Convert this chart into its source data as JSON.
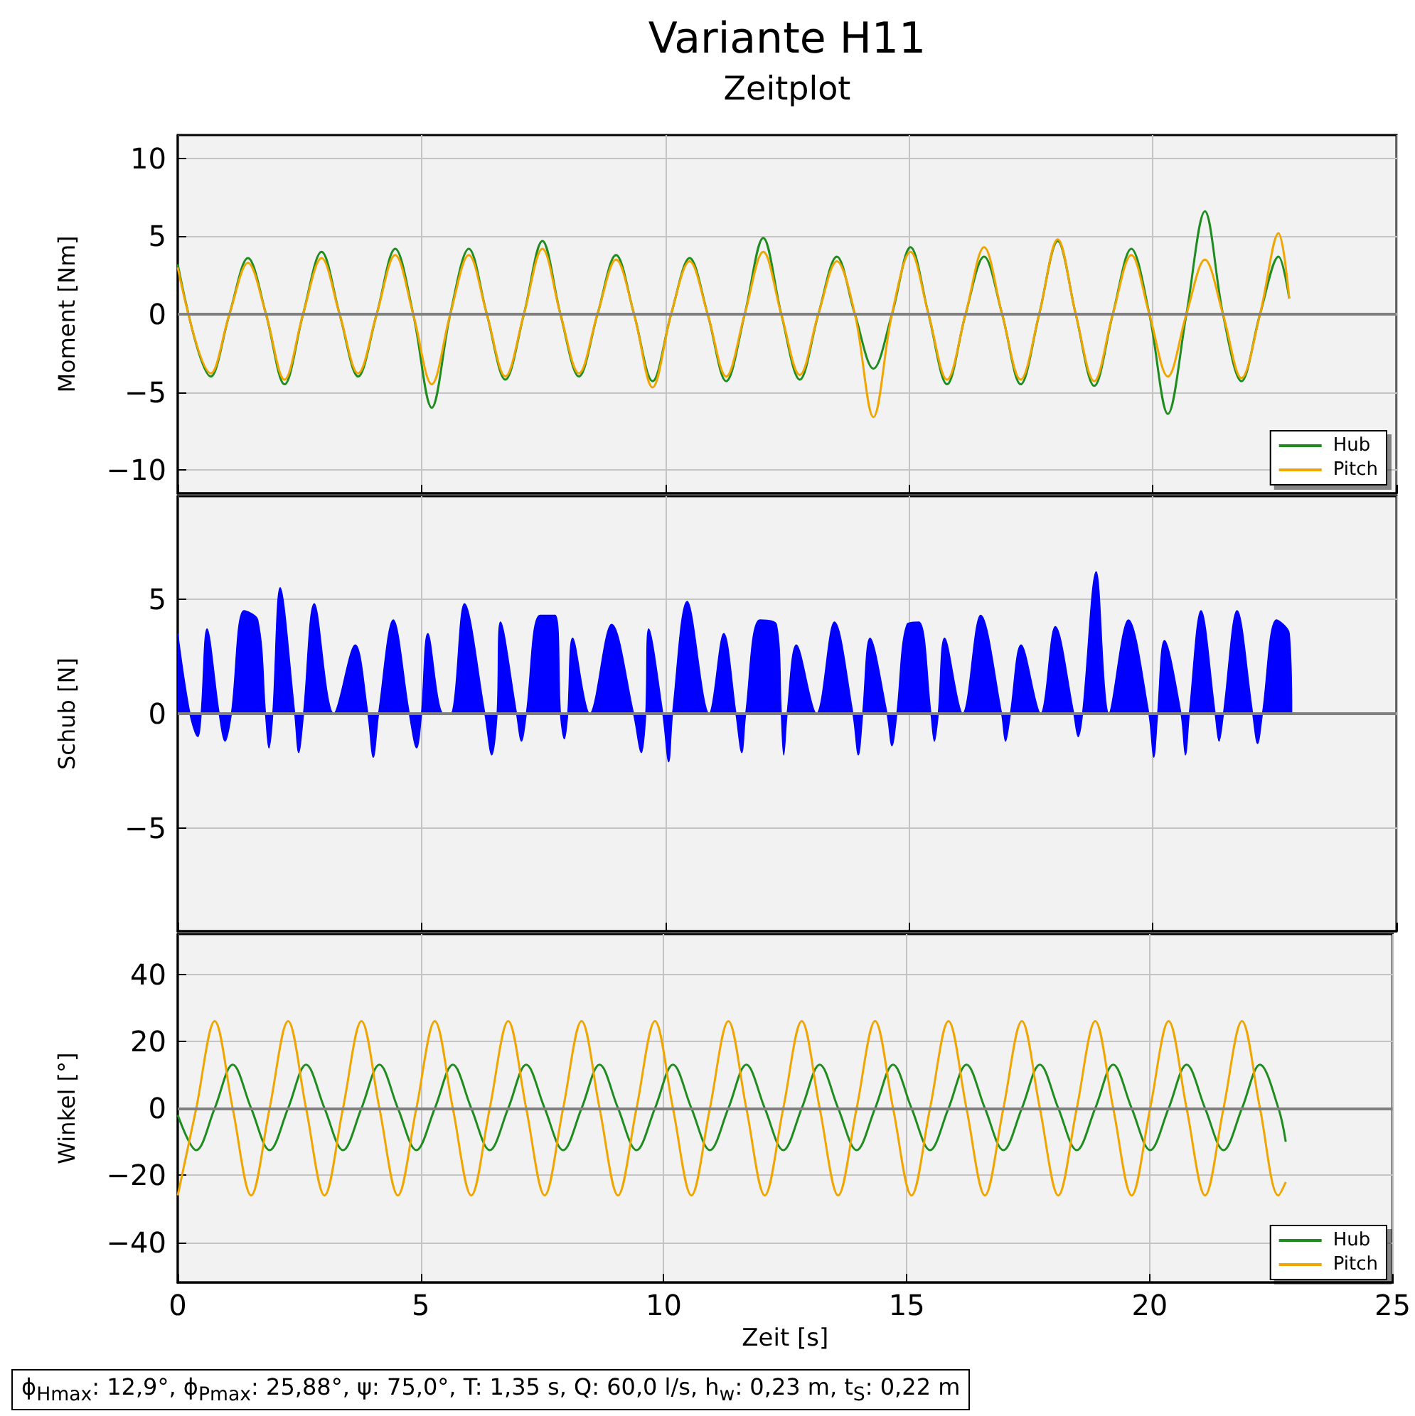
{
  "chart_data": [
    {
      "type": "line",
      "title": "Variante H11",
      "subtitle": "Zeitplot",
      "ylabel": "Moment [Nm]",
      "x": [
        0,
        0.68,
        1.06,
        1.44,
        1.81,
        2.19,
        2.57,
        2.95,
        3.32,
        3.7,
        4.08,
        4.46,
        4.83,
        5.21,
        5.59,
        5.97,
        6.34,
        6.72,
        7.1,
        7.48,
        7.85,
        8.23,
        8.61,
        8.99,
        9.36,
        9.74,
        10.12,
        10.5,
        10.87,
        11.25,
        11.63,
        12.01,
        12.38,
        12.76,
        13.14,
        13.52,
        13.89,
        14.27,
        14.65,
        15.03,
        15.4,
        15.78,
        16.16,
        16.54,
        16.91,
        17.29,
        17.67,
        18.05,
        18.42,
        18.8,
        19.18,
        19.56,
        19.93,
        20.31,
        20.69,
        21.07,
        21.44,
        21.82,
        22.2,
        22.58,
        22.8
      ],
      "series": [
        {
          "name": "Hub",
          "color": "#1e8c1e",
          "values": [
            3.2,
            -4.0,
            0,
            3.6,
            0,
            -4.5,
            0,
            4.0,
            0,
            -4.0,
            0,
            4.2,
            0,
            -6.0,
            0,
            4.2,
            0,
            -4.2,
            0,
            4.7,
            0,
            -4.0,
            0,
            3.8,
            0,
            -4.3,
            0,
            3.6,
            0,
            -4.3,
            0,
            4.9,
            0,
            -4.2,
            0,
            3.7,
            0,
            -3.5,
            0,
            4.3,
            0,
            -4.5,
            0,
            3.7,
            0,
            -4.5,
            0,
            4.7,
            0,
            -4.6,
            0,
            4.2,
            0,
            -6.4,
            0,
            6.6,
            0,
            -4.3,
            0,
            3.7,
            1.0
          ]
        },
        {
          "name": "Pitch",
          "color": "#f0a500",
          "values": [
            3.0,
            -3.8,
            0,
            3.3,
            0,
            -4.2,
            0,
            3.6,
            0,
            -3.8,
            0,
            3.8,
            0,
            -4.5,
            0,
            3.8,
            0,
            -4.0,
            0,
            4.2,
            0,
            -3.8,
            0,
            3.5,
            0,
            -4.7,
            0,
            3.4,
            0,
            -4.0,
            0,
            4.0,
            0,
            -3.9,
            0,
            3.4,
            0,
            -6.6,
            0,
            4.0,
            0,
            -4.2,
            0,
            4.3,
            0,
            -4.2,
            0,
            4.8,
            0,
            -4.3,
            0,
            3.8,
            0,
            -4.0,
            0,
            3.5,
            0,
            -4.1,
            0,
            5.2,
            1.0
          ]
        }
      ],
      "xlim": [
        0,
        25
      ],
      "xticks": [
        0,
        5,
        10,
        15,
        20,
        25
      ],
      "ylim": [
        -11.5,
        11.5
      ],
      "yticks": [
        -10,
        -5,
        0,
        5,
        10
      ],
      "ref_lines": [
        {
          "axis": "y",
          "value": 0,
          "color": "#808080"
        }
      ],
      "grid": true,
      "legend": "bottom right",
      "tick_labels": "y"
    },
    {
      "type": "area",
      "ylabel": "Schub [N]",
      "x": [
        0,
        0.25,
        0.41,
        0.48,
        0.6,
        0.85,
        0.97,
        1.1,
        1.36,
        1.64,
        1.8,
        1.87,
        1.95,
        2.1,
        2.4,
        2.48,
        2.58,
        2.8,
        3.2,
        3.64,
        3.9,
        4.01,
        4.12,
        4.42,
        4.75,
        4.9,
        5.0,
        5.13,
        5.45,
        5.6,
        5.88,
        6.3,
        6.44,
        6.55,
        6.62,
        6.95,
        7.05,
        7.15,
        7.43,
        7.74,
        7.85,
        7.93,
        8.0,
        8.1,
        8.45,
        8.9,
        9.35,
        9.51,
        9.6,
        9.66,
        9.95,
        10.07,
        10.15,
        10.45,
        10.9,
        11.2,
        11.45,
        11.57,
        11.65,
        11.94,
        12.28,
        12.38,
        12.43,
        12.5,
        12.69,
        13.1,
        13.47,
        13.85,
        13.96,
        14.05,
        14.2,
        14.55,
        14.65,
        14.75,
        14.96,
        15.2,
        15.45,
        15.52,
        15.6,
        15.73,
        16.1,
        16.47,
        16.9,
        16.98,
        17.08,
        17.3,
        17.7,
        18.0,
        18.38,
        18.47,
        18.56,
        18.84,
        19.1,
        19.5,
        19.92,
        20.02,
        20.1,
        20.24,
        20.58,
        20.67,
        20.75,
        20.99,
        21.28,
        21.36,
        21.45,
        21.73,
        22.05,
        22.15,
        22.25,
        22.54,
        22.8,
        22.85
      ],
      "series": [
        {
          "color": "#0000ff",
          "values": [
            3.5,
            0,
            -1.0,
            0,
            3.7,
            0,
            -1.2,
            0,
            4.5,
            4.1,
            0,
            -1.5,
            0,
            5.5,
            0,
            -1.7,
            0,
            4.8,
            0,
            3.0,
            0,
            -1.9,
            0,
            4.1,
            0,
            -1.5,
            0,
            3.5,
            0,
            0,
            4.8,
            0,
            -1.8,
            0,
            4.0,
            0,
            -1.2,
            0,
            4.3,
            4.3,
            0,
            -1.1,
            0,
            3.3,
            0,
            3.9,
            0,
            -1.7,
            0,
            3.7,
            0,
            -2.1,
            0,
            4.9,
            0,
            3.5,
            0,
            -1.7,
            0,
            4.1,
            3.9,
            0,
            -1.8,
            0,
            3.0,
            0,
            4.0,
            0,
            -1.8,
            0,
            3.3,
            0,
            -1.4,
            0,
            3.9,
            4.0,
            0,
            -1.2,
            0,
            3.3,
            0,
            4.3,
            0,
            -1.2,
            0,
            3.0,
            0,
            3.8,
            0,
            -1.0,
            0,
            6.2,
            0,
            4.1,
            0,
            -1.9,
            0,
            3.2,
            0,
            -1.8,
            0,
            4.5,
            0,
            -1.2,
            0,
            4.5,
            0,
            -1.3,
            0,
            4.1,
            3.5,
            0
          ]
        }
      ],
      "xlim": [
        0,
        25
      ],
      "xticks": [
        0,
        5,
        10,
        15,
        20,
        25
      ],
      "ylim": [
        -9.5,
        9.5
      ],
      "yticks": [
        -5,
        0,
        5
      ],
      "ref_lines": [
        {
          "axis": "y",
          "value": 0,
          "color": "#808080"
        }
      ],
      "grid": true,
      "tick_labels": "y"
    },
    {
      "type": "line",
      "xlabel": "Zeit [s]",
      "ylabel": "Winkel [°]",
      "x": [
        0,
        0.38,
        0.76,
        1.13,
        1.51,
        1.89,
        2.27,
        2.64,
        3.02,
        3.4,
        3.78,
        4.15,
        4.53,
        4.91,
        5.29,
        5.66,
        6.04,
        6.42,
        6.8,
        7.17,
        7.55,
        7.93,
        8.31,
        8.68,
        9.06,
        9.44,
        9.82,
        10.19,
        10.57,
        10.95,
        11.33,
        11.7,
        12.08,
        12.46,
        12.84,
        13.21,
        13.59,
        13.97,
        14.35,
        14.72,
        15.1,
        15.48,
        15.86,
        16.23,
        16.61,
        16.99,
        17.37,
        17.74,
        18.12,
        18.5,
        18.88,
        19.25,
        19.63,
        20.01,
        20.39,
        20.76,
        21.14,
        21.52,
        21.9,
        22.27,
        22.65,
        22.8
      ],
      "series": [
        {
          "name": "Hub",
          "color": "#1e8c1e",
          "values": [
            -2,
            -12.5,
            0,
            13,
            0,
            -12.5,
            0,
            13,
            0,
            -12.5,
            0,
            13,
            0,
            -12.5,
            0,
            13,
            0,
            -12.5,
            0,
            13,
            0,
            -12.5,
            0,
            13,
            0,
            -12.5,
            0,
            13,
            0,
            -12.5,
            0,
            13,
            0,
            -12.5,
            0,
            13,
            0,
            -12.5,
            0,
            13,
            0,
            -12.5,
            0,
            13,
            0,
            -12.5,
            0,
            13,
            0,
            -12.5,
            0,
            13,
            0,
            -12.5,
            0,
            13,
            0,
            -12.5,
            0,
            13,
            0,
            -10
          ]
        },
        {
          "name": "Pitch",
          "color": "#f0a500",
          "values": [
            -26,
            0,
            26,
            0,
            -26,
            0,
            26,
            0,
            -26,
            0,
            26,
            0,
            -26,
            0,
            26,
            0,
            -26,
            0,
            26,
            0,
            -26,
            0,
            26,
            0,
            -26,
            0,
            26,
            0,
            -26,
            0,
            26,
            0,
            -26,
            0,
            26,
            0,
            -26,
            0,
            26,
            0,
            -26,
            0,
            26,
            0,
            -26,
            0,
            26,
            0,
            -26,
            0,
            26,
            0,
            -26,
            0,
            26,
            0,
            -26,
            0,
            26,
            0,
            -26,
            -22
          ]
        }
      ],
      "xlim": [
        0,
        25
      ],
      "xticks": [
        0,
        5,
        10,
        15,
        20,
        25
      ],
      "ylim": [
        -52,
        52
      ],
      "yticks": [
        -40,
        -20,
        0,
        20,
        40
      ],
      "ref_lines": [
        {
          "axis": "y",
          "value": 0,
          "color": "#808080"
        }
      ],
      "grid": true,
      "legend": "bottom right",
      "annotations": [
        "ϕ$_{Hmax}$: 12,9°, ϕ$_{Pmax}$: 25,88°, ψ: 75,0°, T: 1,35 s, Q: 60,0 l/s, h$_{w}$: 0,23 m, t$_{S}$: 0,22 m"
      ]
    }
  ]
}
